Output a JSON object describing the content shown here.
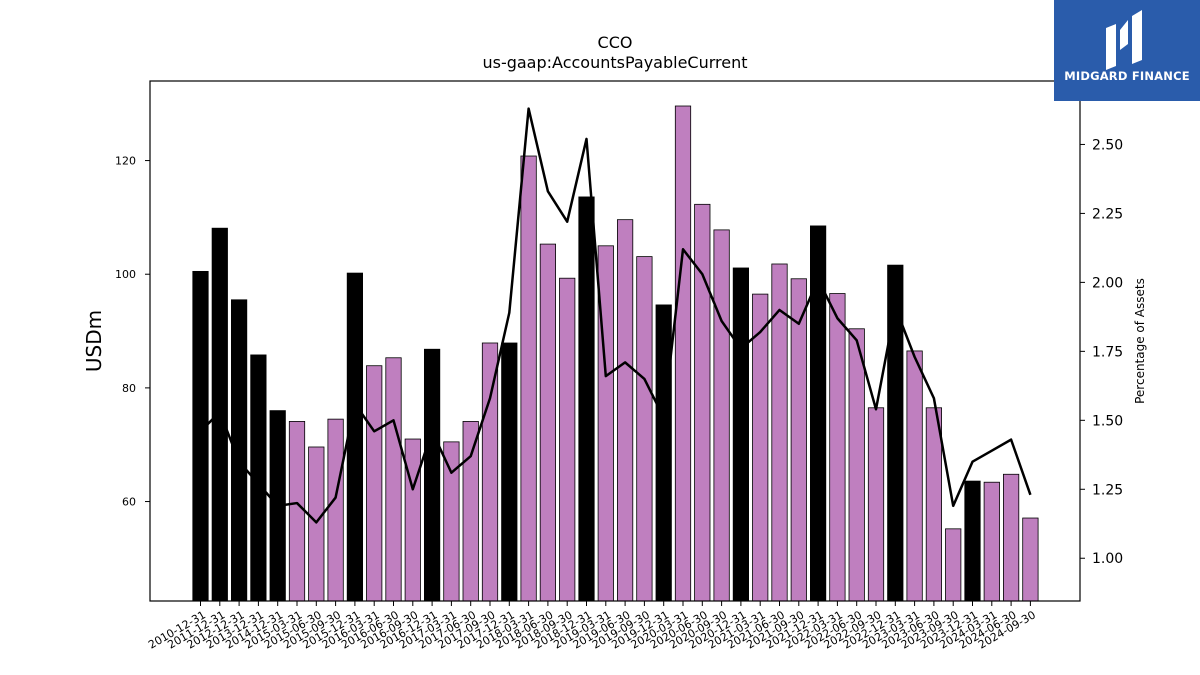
{
  "chart_data": {
    "type": "bar",
    "title": "CCO",
    "subtitle": "us-gaap:AccountsPayableCurrent",
    "ylabel": "USDm",
    "y2label": "Percentage of Assets",
    "ylim": [
      42.5,
      134.0
    ],
    "y2lim": [
      0.845,
      2.73
    ],
    "yticks": [
      60,
      80,
      100,
      120
    ],
    "y2ticks": [
      1.0,
      1.25,
      1.5,
      1.75,
      2.0,
      2.25,
      2.5
    ],
    "categories": [
      "2010-12-31",
      "2011-12-31",
      "2012-12-31",
      "2013-12-31",
      "2014-12-31",
      "2015-03-31",
      "2015-06-30",
      "2015-09-30",
      "2015-12-31",
      "2016-03-31",
      "2016-06-30",
      "2016-09-30",
      "2016-12-31",
      "2017-03-31",
      "2017-06-30",
      "2017-09-30",
      "2017-12-31",
      "2018-03-31",
      "2018-06-30",
      "2018-09-30",
      "2018-12-31",
      "2019-03-31",
      "2019-06-30",
      "2019-09-30",
      "2019-12-31",
      "2020-03-31",
      "2020-06-30",
      "2020-09-30",
      "2020-12-31",
      "2021-03-31",
      "2021-06-30",
      "2021-09-30",
      "2021-12-31",
      "2022-03-31",
      "2022-06-30",
      "2022-09-30",
      "2022-12-31",
      "2023-03-31",
      "2023-06-30",
      "2023-09-30",
      "2023-12-31",
      "2024-03-31",
      "2024-06-30",
      "2024-09-30"
    ],
    "series": [
      {
        "type": "bar",
        "values": [
          100.5,
          108.1,
          95.5,
          85.8,
          76.0,
          74.1,
          69.6,
          74.5,
          100.2,
          83.9,
          85.3,
          71.0,
          86.8,
          70.5,
          74.1,
          87.9,
          87.9,
          120.8,
          105.3,
          99.3,
          113.6,
          105.0,
          109.6,
          103.1,
          94.6,
          129.6,
          112.3,
          107.8,
          101.1,
          96.5,
          101.8,
          99.2,
          108.5,
          96.6,
          90.4,
          76.5,
          101.6,
          86.5,
          76.5,
          55.2,
          63.6,
          63.4,
          64.8,
          57.1
        ],
        "highlight": [
          true,
          true,
          true,
          true,
          true,
          false,
          false,
          false,
          true,
          false,
          false,
          false,
          true,
          false,
          false,
          false,
          true,
          false,
          false,
          false,
          true,
          false,
          false,
          false,
          true,
          false,
          false,
          false,
          true,
          false,
          false,
          false,
          true,
          false,
          false,
          false,
          true,
          false,
          false,
          false,
          true,
          false,
          false,
          false
        ]
      },
      {
        "type": "line",
        "axis": "right",
        "values": [
          1.46,
          1.53,
          1.35,
          1.27,
          1.19,
          1.2,
          1.13,
          1.22,
          1.56,
          1.46,
          1.5,
          1.25,
          1.46,
          1.31,
          1.37,
          1.58,
          1.89,
          2.63,
          2.33,
          2.22,
          2.52,
          1.66,
          1.71,
          1.65,
          1.51,
          2.12,
          2.03,
          1.86,
          1.76,
          1.82,
          1.9,
          1.85,
          2.01,
          1.87,
          1.79,
          1.54,
          1.91,
          1.73,
          1.58,
          1.19,
          1.35,
          1.39,
          1.43,
          1.23
        ]
      }
    ],
    "colors": {
      "bar": "#bf7fbf",
      "highlight": "#000000",
      "line": "#000000"
    }
  },
  "logo": {
    "text": "MIDGARD FINANCE",
    "bg": "#2a5cab"
  }
}
